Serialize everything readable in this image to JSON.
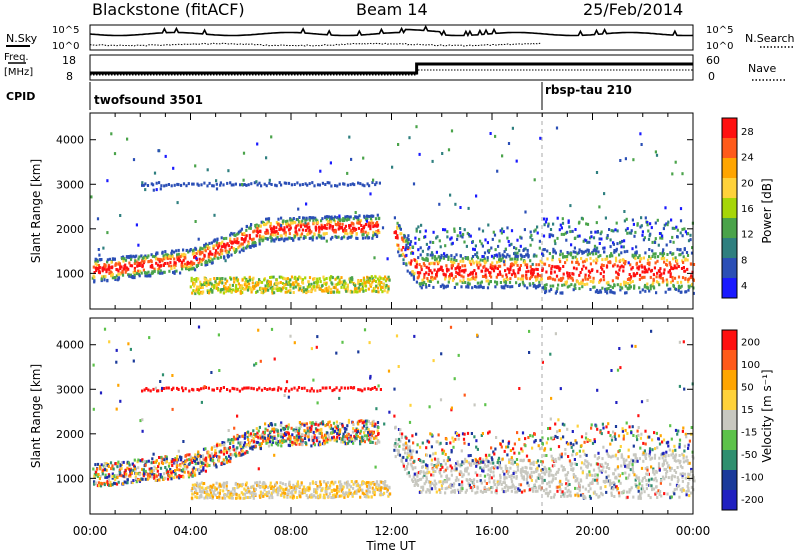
{
  "header": {
    "title": "Blackstone (fitACF)",
    "beam": "Beam 14",
    "date": "25/Feb/2014"
  },
  "sky_panel": {
    "left_label": "N.Sky",
    "right_label": "N.Search",
    "left_ticks": [
      "10^5",
      "10^0"
    ],
    "right_ticks": [
      "10^5",
      "10^0"
    ]
  },
  "freq_panel": {
    "left_label_1": "Freq.",
    "left_label_2": "[MHz]",
    "left_ticks": [
      "18",
      "8"
    ],
    "right_label": "Nave",
    "right_ticks": [
      "60",
      "0"
    ]
  },
  "cpid": {
    "label": "CPID",
    "segments": [
      {
        "name": "twofsound 3501",
        "start_hour": 0
      },
      {
        "name": "rbsp-tau 210",
        "start_hour": 18
      }
    ]
  },
  "chart_data": [
    {
      "type": "heatmap",
      "quantity": "Power",
      "ylabel": "Slant Range [km]",
      "xlabel": "Time UT",
      "ylim": [
        200,
        4600
      ],
      "yticks": [
        1000,
        2000,
        3000,
        4000
      ],
      "xticks": [
        "00:00",
        "04:00",
        "08:00",
        "12:00",
        "16:00",
        "20:00",
        "00:00"
      ],
      "colorbar": {
        "label": "Power [dB]",
        "ticks": [
          "28",
          "24",
          "20",
          "16",
          "12",
          "8",
          "4"
        ],
        "range": [
          0,
          30
        ]
      }
    },
    {
      "type": "heatmap",
      "quantity": "Velocity",
      "ylabel": "Slant Range [km]",
      "xlabel": "Time UT",
      "ylim": [
        200,
        4600
      ],
      "yticks": [
        1000,
        2000,
        3000,
        4000
      ],
      "xticks": [
        "00:00",
        "04:00",
        "08:00",
        "12:00",
        "16:00",
        "20:00",
        "00:00"
      ],
      "colorbar": {
        "label": "Velocity [m s⁻¹]",
        "ticks": [
          "200",
          "100",
          "50",
          "15",
          "-15",
          "-50",
          "-100",
          "-200"
        ],
        "range": [
          -250,
          250
        ]
      }
    }
  ],
  "xaxis_label": "Time UT"
}
